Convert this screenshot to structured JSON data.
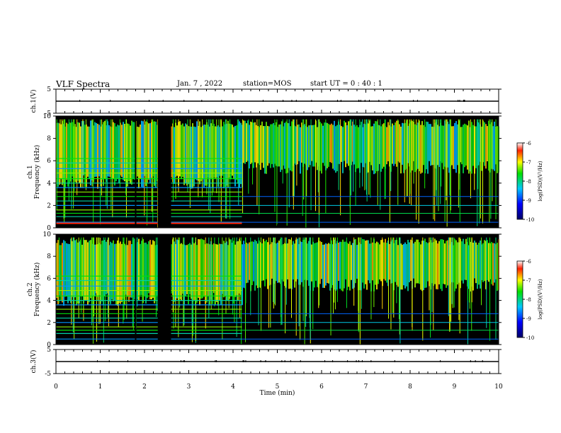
{
  "header": {
    "title": "VLF Spectra",
    "date": "Jan. 7 , 2022",
    "station": "station=MOS",
    "start_ut": "start UT =  0 : 40 : 1"
  },
  "chart_data": [
    {
      "type": "line",
      "ylabel": "ch.1(V)",
      "ylim": [
        -5,
        5
      ],
      "yticks": [
        "5",
        "-5"
      ],
      "series": [
        {
          "x": [
            0,
            10
          ],
          "y": [
            0,
            0
          ]
        }
      ]
    },
    {
      "type": "heatmap",
      "ylabel": "ch.1\nFrequency (kHz)",
      "ylim": [
        0,
        10
      ],
      "yticks": [
        "0",
        "2",
        "4",
        "6",
        "8",
        "10"
      ],
      "xlim": [
        0,
        10
      ],
      "colorbar": {
        "label": "log(PSD)(V²/Hz)",
        "ticks": [
          "-6",
          "-7",
          "-8",
          "-9",
          "-10"
        ],
        "range": [
          -10,
          -6
        ]
      }
    },
    {
      "type": "heatmap",
      "ylabel": "ch.2\nFrequency (kHz)",
      "ylim": [
        0,
        10
      ],
      "yticks": [
        "0",
        "2",
        "4",
        "6",
        "8",
        "10"
      ],
      "xlim": [
        0,
        10
      ],
      "colorbar": {
        "label": "log(PSD)(V²/Hz)",
        "ticks": [
          "-6",
          "-7",
          "-8",
          "-9",
          "-10"
        ],
        "range": [
          -10,
          -6
        ]
      }
    },
    {
      "type": "line",
      "ylabel": "ch.3(V)",
      "ylim": [
        -5,
        5
      ],
      "yticks": [
        "5",
        "-5"
      ],
      "xlabel": "Time (min)",
      "xlim": [
        0,
        10
      ],
      "xticks": [
        "0",
        "1",
        "2",
        "3",
        "4",
        "5",
        "6",
        "7",
        "8",
        "9",
        "10"
      ],
      "series": [
        {
          "x": [
            0,
            10
          ],
          "y": [
            0,
            0
          ]
        }
      ]
    }
  ],
  "colors": {
    "background": "#000000",
    "axis": "#000000"
  }
}
